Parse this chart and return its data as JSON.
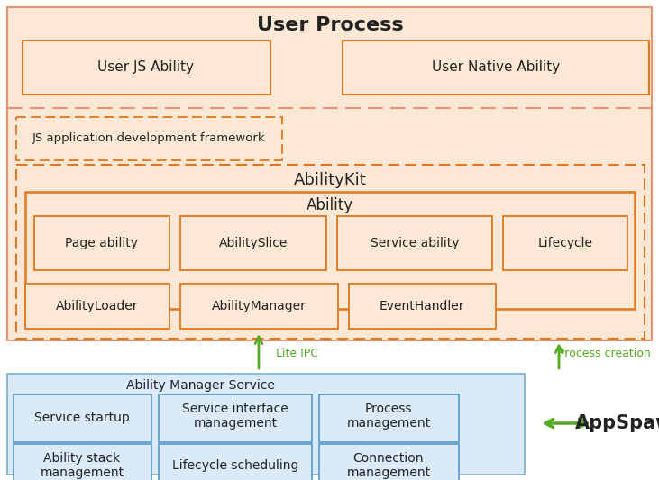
{
  "fig_w": 7.31,
  "fig_h": 5.33,
  "dpi": 100,
  "bg_color": "#ffffff",
  "up_bg": "#fce8d4",
  "up_border": "#e8956e",
  "orange_border": "#e07820",
  "dashed_border": "#e8956e",
  "js_bg": "#fce8d4",
  "ams_bg": "#daeaf8",
  "ams_border": "#7ab0d0",
  "ams_box_border": "#5599cc",
  "green": "#55aa22",
  "dark_text": "#222222",
  "title_text": "#222222",
  "user_process_title": "User Process",
  "user_js_label": "User JS Ability",
  "user_native_label": "User Native Ability",
  "js_framework_label": "JS application development framework",
  "abilitykit_label": "AbilityKit",
  "ability_label": "Ability",
  "page_ability_label": "Page ability",
  "abilityslice_label": "AbilitySlice",
  "service_ability_label": "Service ability",
  "lifecycle_label": "Lifecycle",
  "abilityloader_label": "AbilityLoader",
  "abilitymanager_label": "AbilityManager",
  "eventhandler_label": "EventHandler",
  "ams_label": "Ability Manager Service",
  "service_startup_label": "Service startup",
  "service_interface_label": "Service interface\nmanagement",
  "process_mgmt_label": "Process\nmanagement",
  "ability_stack_label": "Ability stack\nmanagement",
  "lifecycle_sched_label": "Lifecycle scheduling",
  "connection_mgmt_label": "Connection\nmanagement",
  "lite_ipc_label": "Lite IPC",
  "process_creation_label": "Process creation",
  "appspawn_label": "AppSpawn"
}
